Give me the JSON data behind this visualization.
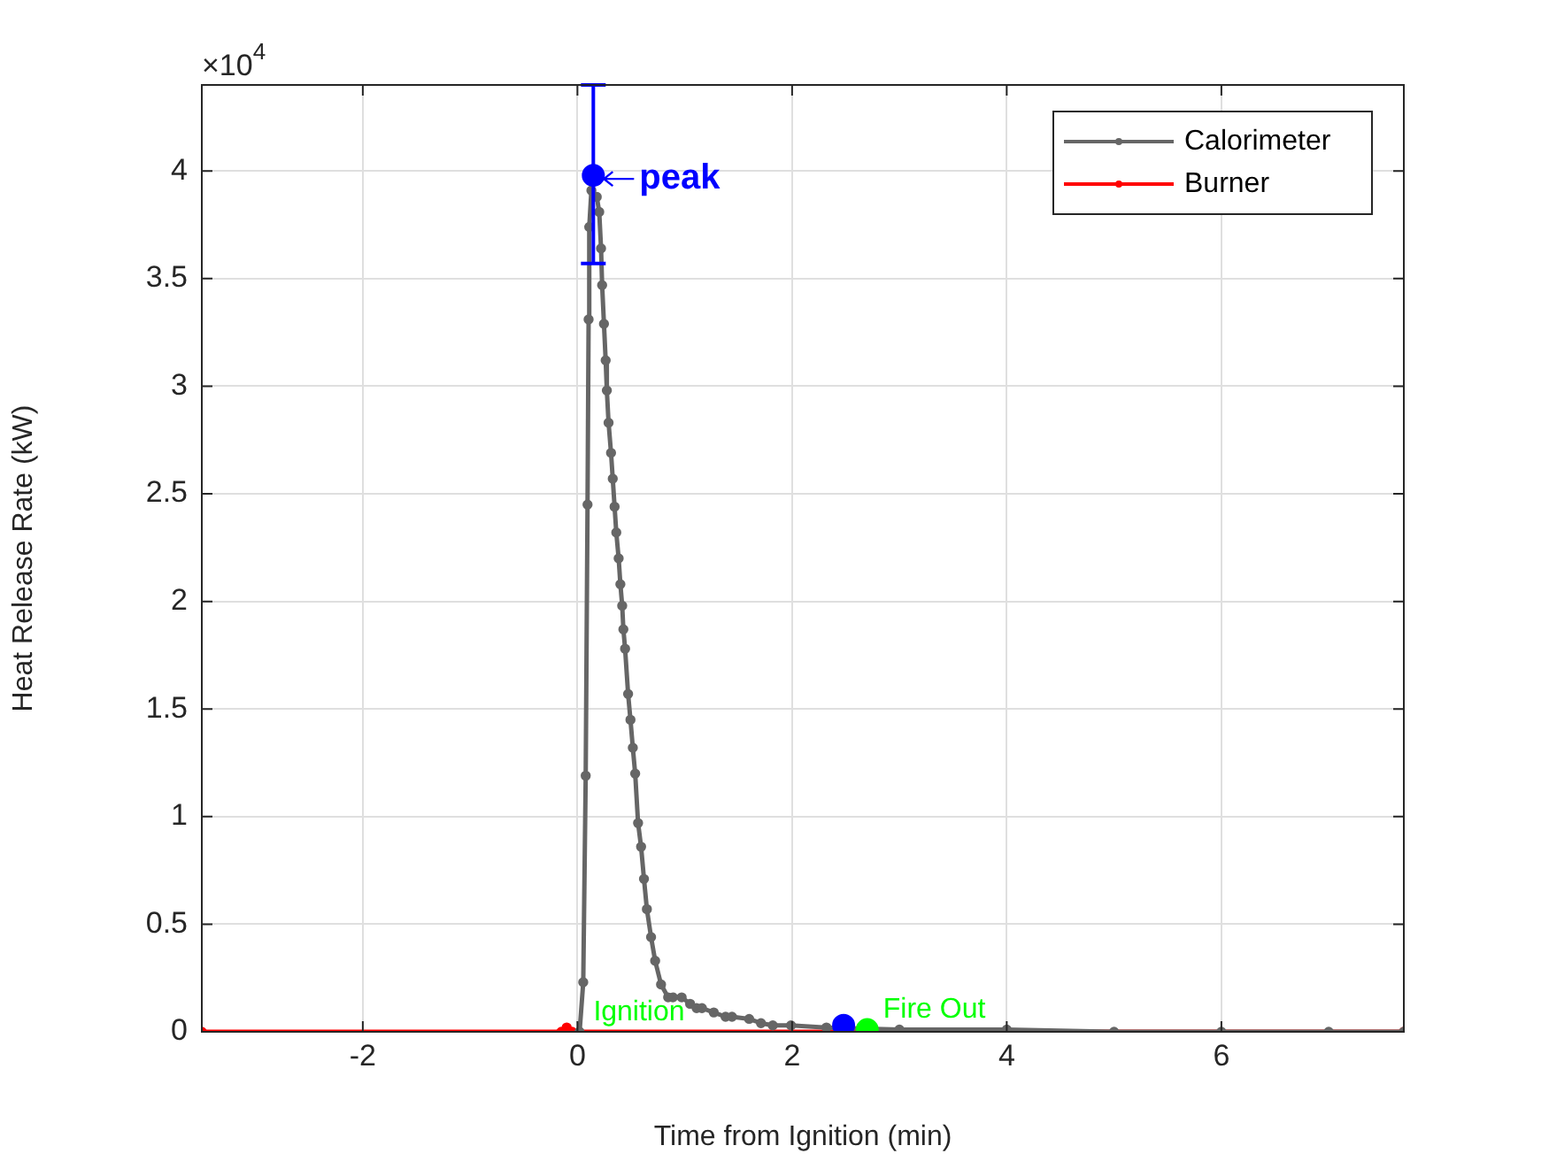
{
  "chart_data": {
    "type": "line",
    "xlabel": "Time from Ignition (min)",
    "ylabel": "Heat Release Rate (kW)",
    "xlim": [
      -3.5,
      7.7
    ],
    "xticks": [
      -2,
      0,
      2,
      4,
      6
    ],
    "ylim": [
      0,
      4.4
    ],
    "yticks": [
      0,
      0.5,
      1,
      1.5,
      2,
      2.5,
      3,
      3.5,
      4
    ],
    "grid": true,
    "legend": "top right",
    "marker": "circle",
    "series": [
      {
        "name": "Calorimeter",
        "color": "#666666",
        "x": [
          0.02,
          0.054,
          0.077,
          0.094,
          0.104,
          0.11,
          0.13,
          0.18,
          0.203,
          0.22,
          0.23,
          0.247,
          0.263,
          0.274,
          0.29,
          0.313,
          0.329,
          0.346,
          0.362,
          0.384,
          0.4,
          0.417,
          0.428,
          0.444,
          0.472,
          0.494,
          0.516,
          0.538,
          0.565,
          0.593,
          0.62,
          0.647,
          0.686,
          0.724,
          0.779,
          0.845,
          0.889,
          0.971,
          1.05,
          1.11,
          1.16,
          1.27,
          1.38,
          1.44,
          1.6,
          1.71,
          1.82,
          1.99,
          2.32,
          3,
          4,
          5,
          6,
          7,
          7.7
        ],
        "values": [
          0,
          0.23,
          1.19,
          2.45,
          3.31,
          3.74,
          3.91,
          3.88,
          3.81,
          3.64,
          3.47,
          3.29,
          3.12,
          2.98,
          2.83,
          2.69,
          2.57,
          2.44,
          2.32,
          2.2,
          2.08,
          1.98,
          1.87,
          1.78,
          1.57,
          1.45,
          1.32,
          1.2,
          0.97,
          0.86,
          0.71,
          0.57,
          0.44,
          0.33,
          0.22,
          0.16,
          0.16,
          0.16,
          0.13,
          0.11,
          0.11,
          0.09,
          0.07,
          0.07,
          0.06,
          0.04,
          0.03,
          0.03,
          0.02,
          0.01,
          0.01,
          0,
          0,
          0,
          0
        ]
      },
      {
        "name": "Burner",
        "color": "#ff0000",
        "x": [
          -3.5,
          -0.15,
          -0.1,
          -0.05,
          7.7
        ],
        "values": [
          0,
          0,
          0.02,
          0,
          0
        ]
      },
      {
        "type": "scatter",
        "color": "#0000ff",
        "x": [
          0.148
        ],
        "values": [
          3.98
        ],
        "errors": [
          [
            3.57,
            4.4
          ]
        ]
      },
      {
        "type": "scatter",
        "color": "#0000ff",
        "x": [
          2.48
        ],
        "values": [
          0.03
        ]
      },
      {
        "type": "scatter",
        "color": "#00ff00",
        "x": [
          2.7
        ],
        "values": [
          0.01
        ]
      }
    ],
    "annotations": [
      "×10$^{4}$",
      {
        "text": "peak",
        "x": 0.148,
        "y": 3.98
      },
      {
        "text": "Ignition",
        "x": 0,
        "y": 0
      },
      {
        "text": "Fire Out",
        "x": 2.7,
        "y": 0.01
      }
    ]
  }
}
